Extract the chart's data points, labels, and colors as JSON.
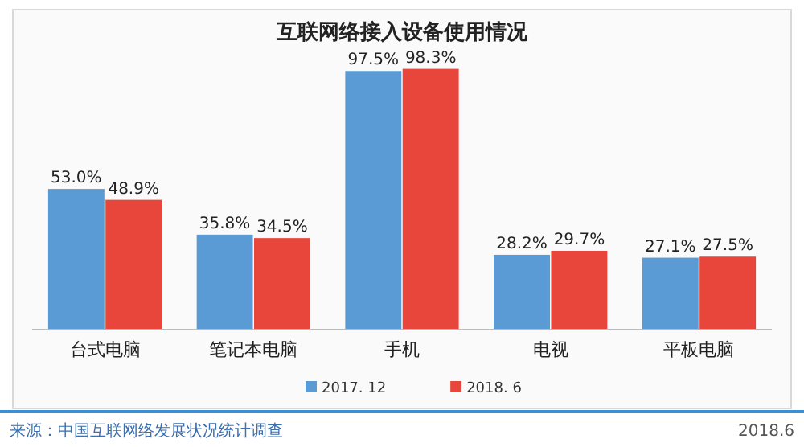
{
  "chart_data": {
    "type": "bar",
    "title": "互联网络接入设备使用情况",
    "categories": [
      "台式电脑",
      "笔记本电脑",
      "手机",
      "电视",
      "平板电脑"
    ],
    "series": [
      {
        "name": "2017. 12",
        "color": "#5b9bd5",
        "values": [
          53.0,
          35.8,
          97.5,
          28.2,
          27.1
        ],
        "value_labels": [
          "53.0%",
          "35.8%",
          "97.5%",
          "28.2%",
          "27.1%"
        ]
      },
      {
        "name": "2018. 6",
        "color": "#e8463a",
        "values": [
          48.9,
          34.5,
          98.3,
          29.7,
          27.5
        ],
        "value_labels": [
          "48.9%",
          "34.5%",
          "98.3%",
          "29.7%",
          "27.5%"
        ]
      }
    ],
    "ylim": [
      0,
      100
    ],
    "legend": "bottom",
    "annotations": [
      "来源：中国互联网络发展状况统计调查",
      "2018.6"
    ]
  }
}
